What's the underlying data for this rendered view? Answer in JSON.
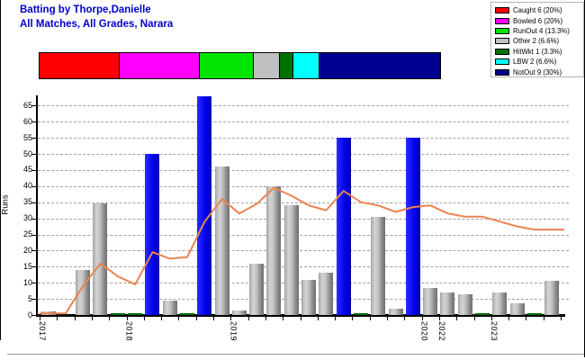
{
  "header": {
    "title_line1": "Batting by Thorpe,Danielle",
    "title_line2": "All Matches, All Grades, Narara",
    "title_color": "#0000cc"
  },
  "legend": {
    "items": [
      {
        "label": "Caught 6 (20%)",
        "color": "#ff0000"
      },
      {
        "label": "Bowled 6 (20%)",
        "color": "#ff00ff"
      },
      {
        "label": "RunOut 4 (13.3%)",
        "color": "#00e400"
      },
      {
        "label": "Other 2 (6.6%)",
        "color": "#c0c0c0"
      },
      {
        "label": "HitWkt 1 (3.3%)",
        "color": "#007000"
      },
      {
        "label": "LBW 2 (6.6%)",
        "color": "#00ffff"
      },
      {
        "label": "NotOut 9 (30%)",
        "color": "#000090"
      }
    ]
  },
  "dismissal_bar": {
    "segments": [
      {
        "name": "Caught",
        "percent": 20,
        "color": "#ff0000"
      },
      {
        "name": "Bowled",
        "percent": 20,
        "color": "#ff00ff"
      },
      {
        "name": "RunOut",
        "percent": 13.3,
        "color": "#00e400"
      },
      {
        "name": "Other",
        "percent": 6.6,
        "color": "#c0c0c0"
      },
      {
        "name": "HitWkt",
        "percent": 3.3,
        "color": "#007000"
      },
      {
        "name": "LBW",
        "percent": 6.6,
        "color": "#00ffff"
      },
      {
        "name": "NotOut",
        "percent": 30,
        "color": "#000090"
      }
    ]
  },
  "chart_data": {
    "type": "bar+line",
    "title": "Batting by Thorpe,Danielle",
    "subtitle": "All Matches, All Grades, Narara",
    "ylabel": "Runs",
    "ylim": [
      0,
      68
    ],
    "yticks": [
      0,
      5,
      10,
      15,
      20,
      25,
      30,
      35,
      40,
      45,
      50,
      55,
      60,
      65
    ],
    "grid": "horizontal-dashed",
    "legend_position": "top-right",
    "innings_bars": {
      "description": "runs per innings, one slot per innings",
      "values": [
        1,
        0,
        14,
        34.5,
        0.5,
        0.5,
        50,
        4.5,
        0.5,
        68,
        46,
        1.5,
        16,
        40,
        34,
        11,
        13,
        55,
        0.5,
        30.5,
        2,
        55,
        8.5,
        7,
        6.5,
        0.5,
        7,
        3.5,
        0.5,
        10.5
      ],
      "kinds": [
        "gray",
        "none",
        "gray",
        "gray",
        "green",
        "green",
        "blue",
        "gray",
        "green",
        "blue",
        "gray",
        "gray",
        "gray",
        "gray",
        "gray",
        "gray",
        "gray",
        "blue",
        "green",
        "gray",
        "gray",
        "blue",
        "gray",
        "gray",
        "gray",
        "green",
        "gray",
        "gray",
        "green",
        "gray"
      ]
    },
    "trend_line": {
      "color": "#ea8450",
      "values": [
        0.5,
        0.5,
        9,
        16,
        12,
        9.5,
        19.5,
        17.5,
        18,
        29,
        36,
        31.5,
        34.5,
        39.5,
        37,
        34,
        32.5,
        38.5,
        35,
        34,
        32,
        33.5,
        34,
        31.5,
        30.5,
        30.5,
        29,
        27.5,
        26.5,
        26.5
      ]
    },
    "season_labels": [
      {
        "label": "2017",
        "slot": 0
      },
      {
        "label": "2018",
        "slot": 5
      },
      {
        "label": "2019",
        "slot": 11
      },
      {
        "label": "2020",
        "slot": 22
      },
      {
        "label": "2022",
        "slot": 23
      },
      {
        "label": "2023",
        "slot": 26
      }
    ]
  }
}
